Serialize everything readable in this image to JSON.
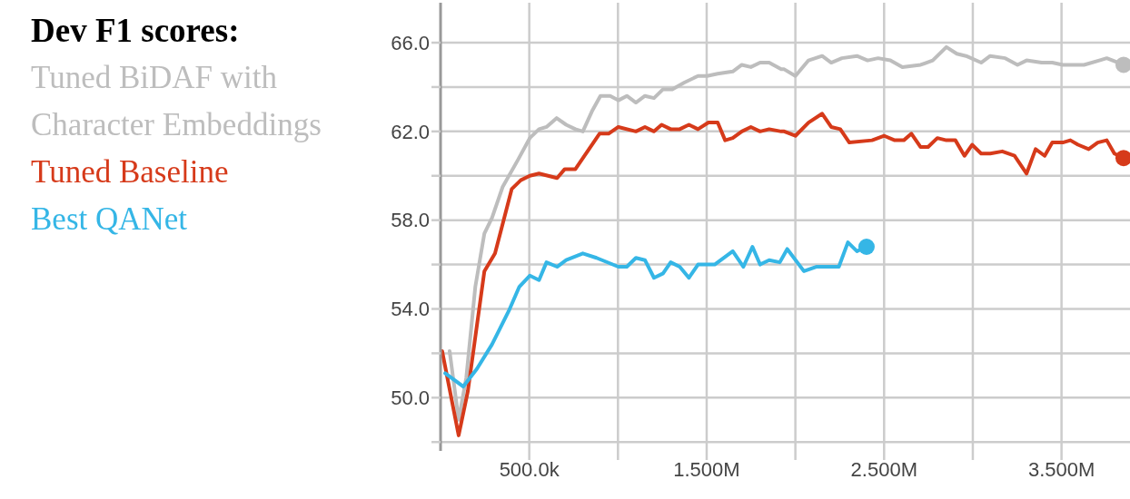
{
  "chart_data": {
    "type": "line",
    "title": "Dev F1 scores:",
    "legend": "left",
    "grid": true,
    "xlim": [
      0,
      3886000
    ],
    "ylim": [
      47.6,
      67.8
    ],
    "xticks": [
      {
        "value": 500000,
        "label": "500.0k"
      },
      {
        "value": 1000000,
        "label": null
      },
      {
        "value": 1500000,
        "label": "1.500M"
      },
      {
        "value": 2000000,
        "label": null
      },
      {
        "value": 2500000,
        "label": "2.500M"
      },
      {
        "value": 3000000,
        "label": null
      },
      {
        "value": 3500000,
        "label": "3.500M"
      }
    ],
    "yticks": [
      {
        "value": 48,
        "label": null
      },
      {
        "value": 50,
        "label": "50.0"
      },
      {
        "value": 52,
        "label": null
      },
      {
        "value": 54,
        "label": "54.0"
      },
      {
        "value": 56,
        "label": null
      },
      {
        "value": 58,
        "label": "58.0"
      },
      {
        "value": 60,
        "label": null
      },
      {
        "value": 62,
        "label": "62.0"
      },
      {
        "value": 64,
        "label": null
      },
      {
        "value": 66,
        "label": "66.0"
      }
    ],
    "series": [
      {
        "name": "Tuned BiDAF with Character Embeddings",
        "color": "#bdbdbd",
        "x": [
          51000,
          102000,
          145000,
          196000,
          247000,
          290000,
          350000,
          435000,
          503000,
          555000,
          597000,
          654000,
          708000,
          760000,
          802000,
          853000,
          901000,
          956000,
          1002000,
          1050000,
          1101000,
          1152000,
          1203000,
          1254000,
          1306000,
          1374000,
          1451000,
          1502000,
          1562000,
          1647000,
          1698000,
          1749000,
          1801000,
          1852000,
          1920000,
          1937000,
          2000000,
          2074000,
          2151000,
          2202000,
          2262000,
          2347000,
          2407000,
          2466000,
          2535000,
          2603000,
          2706000,
          2774000,
          2851000,
          2910000,
          2962000,
          3047000,
          3098000,
          3183000,
          3252000,
          3303000,
          3388000,
          3448000,
          3507000,
          3627000,
          3713000,
          3755000,
          3850000
        ],
        "values": [
          52.1,
          49.0,
          50.9,
          55.0,
          57.4,
          58.1,
          59.5,
          60.7,
          61.7,
          62.1,
          62.2,
          62.6,
          62.3,
          62.1,
          62.0,
          62.9,
          63.6,
          63.6,
          63.4,
          63.6,
          63.3,
          63.6,
          63.5,
          63.9,
          63.9,
          64.2,
          64.5,
          64.5,
          64.6,
          64.7,
          65.0,
          64.9,
          65.1,
          65.1,
          64.8,
          64.8,
          64.5,
          65.2,
          65.4,
          65.1,
          65.3,
          65.4,
          65.2,
          65.3,
          65.2,
          64.9,
          65.0,
          65.2,
          65.8,
          65.5,
          65.4,
          65.1,
          65.4,
          65.3,
          65.0,
          65.2,
          65.1,
          65.1,
          65.0,
          65.0,
          65.2,
          65.3,
          65.0
        ]
      },
      {
        "name": "Tuned Baseline",
        "color": "#d63a1a",
        "x": [
          9000,
          102000,
          154000,
          247000,
          307000,
          401000,
          452000,
          503000,
          555000,
          657000,
          700000,
          760000,
          896000,
          947000,
          1002000,
          1101000,
          1152000,
          1203000,
          1246000,
          1297000,
          1348000,
          1400000,
          1451000,
          1510000,
          1562000,
          1604000,
          1647000,
          1698000,
          1749000,
          1801000,
          1852000,
          1920000,
          1937000,
          2000000,
          2074000,
          2151000,
          2202000,
          2253000,
          2304000,
          2432000,
          2501000,
          2560000,
          2611000,
          2654000,
          2705000,
          2748000,
          2800000,
          2851000,
          2902000,
          2953000,
          2996000,
          3047000,
          3098000,
          3166000,
          3235000,
          3303000,
          3354000,
          3405000,
          3448000,
          3507000,
          3550000,
          3593000,
          3653000,
          3704000,
          3755000,
          3798000,
          3850000
        ],
        "values": [
          52.1,
          48.3,
          50.3,
          55.7,
          56.5,
          59.4,
          59.8,
          60.0,
          60.1,
          59.9,
          60.3,
          60.3,
          61.9,
          61.9,
          62.2,
          62.0,
          62.2,
          62.0,
          62.3,
          62.1,
          62.1,
          62.3,
          62.1,
          62.4,
          62.4,
          61.6,
          61.7,
          62.0,
          62.2,
          62.0,
          62.1,
          62.0,
          62.0,
          61.8,
          62.4,
          62.8,
          62.2,
          62.1,
          61.5,
          61.6,
          61.8,
          61.6,
          61.6,
          61.9,
          61.3,
          61.3,
          61.7,
          61.6,
          61.6,
          60.9,
          61.4,
          61.0,
          61.0,
          61.1,
          60.9,
          60.1,
          61.2,
          60.9,
          61.5,
          61.5,
          61.6,
          61.4,
          61.2,
          61.5,
          61.6,
          61.0,
          60.8
        ]
      },
      {
        "name": "Best QANet",
        "color": "#35b6e6",
        "x": [
          26000,
          128000,
          205000,
          290000,
          384000,
          444000,
          503000,
          555000,
          597000,
          657000,
          708000,
          802000,
          879000,
          1002000,
          1050000,
          1101000,
          1152000,
          1203000,
          1254000,
          1297000,
          1348000,
          1400000,
          1451000,
          1545000,
          1647000,
          1707000,
          1758000,
          1801000,
          1852000,
          1912000,
          1954000,
          2048000,
          2117000,
          2185000,
          2245000,
          2296000,
          2347000,
          2401000
        ],
        "values": [
          51.1,
          50.5,
          51.3,
          52.4,
          53.9,
          55.0,
          55.5,
          55.3,
          56.1,
          55.9,
          56.2,
          56.5,
          56.3,
          55.9,
          55.9,
          56.3,
          56.2,
          55.4,
          55.6,
          56.1,
          55.9,
          55.4,
          56.0,
          56.0,
          56.6,
          55.9,
          56.8,
          56.0,
          56.2,
          56.1,
          56.7,
          55.7,
          55.9,
          55.9,
          55.9,
          57.0,
          56.6,
          56.8
        ]
      }
    ]
  }
}
